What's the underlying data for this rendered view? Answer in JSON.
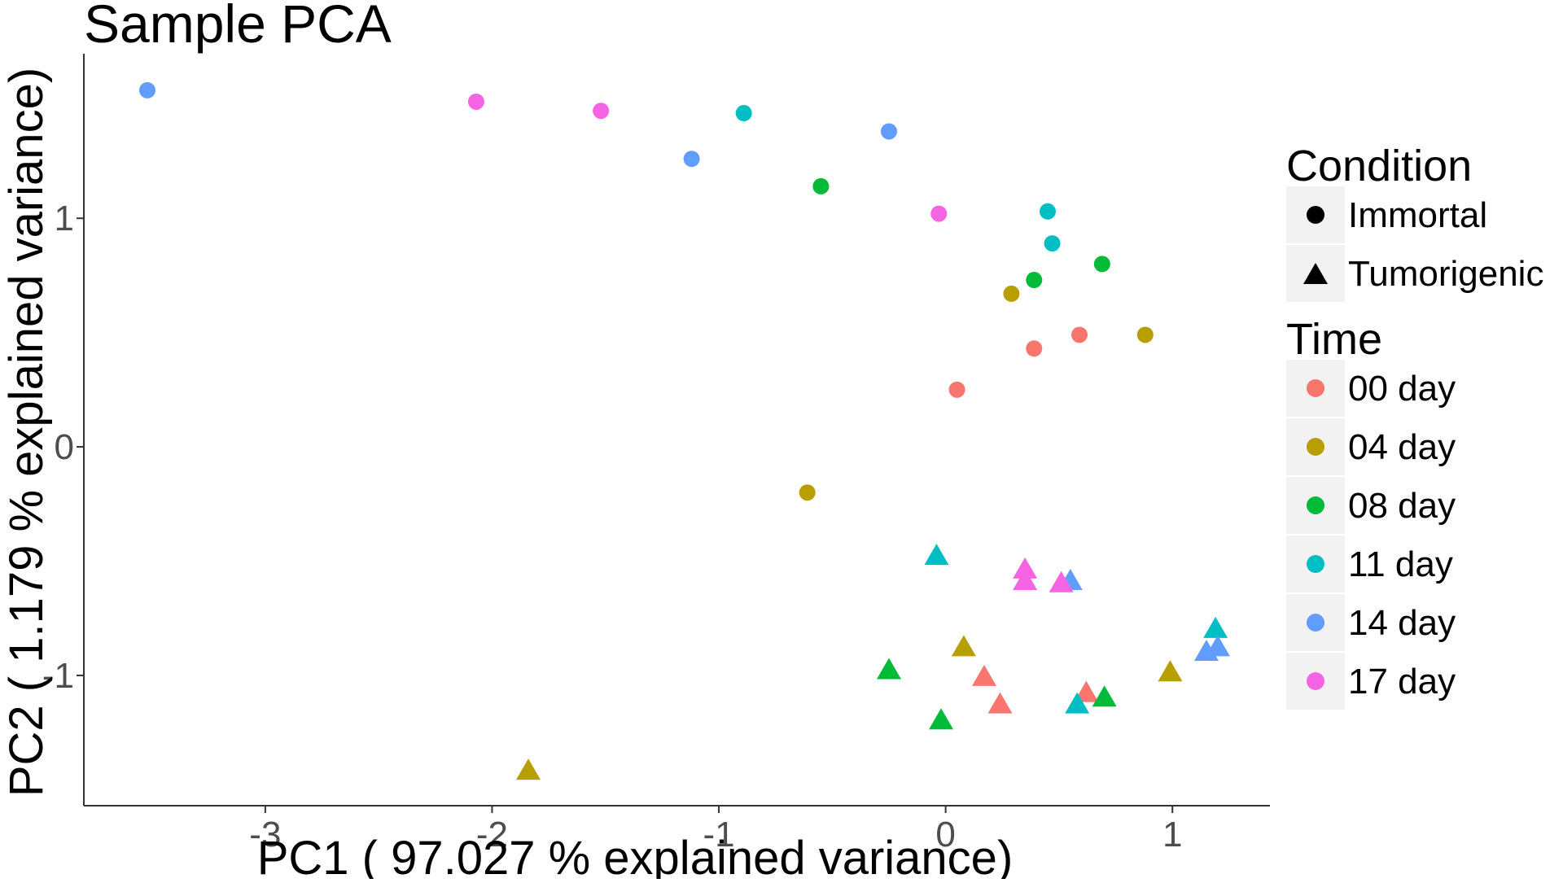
{
  "chart_data": {
    "type": "scatter",
    "title": "Sample PCA",
    "xlabel": "PC1 ( 97.027 % explained variance)",
    "ylabel": "PC2 ( 1.179 % explained variance)",
    "xlim": [
      -3.8,
      1.43
    ],
    "ylim": [
      -1.57,
      1.72
    ],
    "x_ticks": [
      -3,
      -2,
      -1,
      0,
      1
    ],
    "x_tick_labels": [
      "-3",
      "-2",
      "-1",
      "0",
      "1"
    ],
    "y_ticks": [
      -1,
      0,
      1
    ],
    "y_tick_labels": [
      "-1",
      "0",
      "1"
    ],
    "grid": false,
    "legend_placement": "right",
    "shape_legend": {
      "title": "Condition",
      "items": [
        {
          "label": "Immortal",
          "shape": "circle"
        },
        {
          "label": "Tumorigenic",
          "shape": "triangle"
        }
      ]
    },
    "color_legend": {
      "title": "Time",
      "items": [
        {
          "label": "00 day",
          "color": "#F8766D"
        },
        {
          "label": "04 day",
          "color": "#B79F00"
        },
        {
          "label": "08 day",
          "color": "#00BA38"
        },
        {
          "label": "11 day",
          "color": "#00BFC4"
        },
        {
          "label": "14 day",
          "color": "#619CFF"
        },
        {
          "label": "17 day",
          "color": "#F564E3"
        }
      ]
    },
    "series": [
      {
        "name": "Immortal",
        "shape": "circle",
        "points": [
          {
            "x": -3.52,
            "y": 1.56,
            "time": "14 day"
          },
          {
            "x": -2.07,
            "y": 1.51,
            "time": "17 day"
          },
          {
            "x": -1.52,
            "y": 1.47,
            "time": "17 day"
          },
          {
            "x": -0.89,
            "y": 1.46,
            "time": "11 day"
          },
          {
            "x": -0.25,
            "y": 1.38,
            "time": "14 day"
          },
          {
            "x": -1.12,
            "y": 1.26,
            "time": "14 day"
          },
          {
            "x": -0.55,
            "y": 1.14,
            "time": "08 day"
          },
          {
            "x": -0.03,
            "y": 1.02,
            "time": "17 day"
          },
          {
            "x": 0.45,
            "y": 1.03,
            "time": "11 day"
          },
          {
            "x": 0.47,
            "y": 0.89,
            "time": "11 day"
          },
          {
            "x": 0.69,
            "y": 0.8,
            "time": "08 day"
          },
          {
            "x": 0.39,
            "y": 0.73,
            "time": "08 day"
          },
          {
            "x": 0.29,
            "y": 0.67,
            "time": "04 day"
          },
          {
            "x": 0.59,
            "y": 0.49,
            "time": "00 day"
          },
          {
            "x": 0.88,
            "y": 0.49,
            "time": "04 day"
          },
          {
            "x": 0.39,
            "y": 0.43,
            "time": "00 day"
          },
          {
            "x": 0.05,
            "y": 0.25,
            "time": "00 day"
          },
          {
            "x": -0.61,
            "y": -0.2,
            "time": "04 day"
          }
        ]
      },
      {
        "name": "Tumorigenic",
        "shape": "triangle",
        "points": [
          {
            "x": -0.04,
            "y": -0.47,
            "time": "11 day"
          },
          {
            "x": 0.35,
            "y": -0.53,
            "time": "17 day"
          },
          {
            "x": 0.35,
            "y": -0.58,
            "time": "17 day"
          },
          {
            "x": 0.55,
            "y": -0.58,
            "time": "14 day"
          },
          {
            "x": 0.51,
            "y": -0.59,
            "time": "17 day"
          },
          {
            "x": 1.19,
            "y": -0.79,
            "time": "11 day"
          },
          {
            "x": 1.2,
            "y": -0.87,
            "time": "14 day"
          },
          {
            "x": 1.15,
            "y": -0.89,
            "time": "14 day"
          },
          {
            "x": 0.08,
            "y": -0.87,
            "time": "04 day"
          },
          {
            "x": -0.25,
            "y": -0.97,
            "time": "08 day"
          },
          {
            "x": 0.17,
            "y": -1.0,
            "time": "00 day"
          },
          {
            "x": 0.99,
            "y": -0.98,
            "time": "04 day"
          },
          {
            "x": 0.62,
            "y": -1.07,
            "time": "00 day"
          },
          {
            "x": 0.7,
            "y": -1.09,
            "time": "08 day"
          },
          {
            "x": 0.24,
            "y": -1.12,
            "time": "00 day"
          },
          {
            "x": 0.58,
            "y": -1.12,
            "time": "11 day"
          },
          {
            "x": -0.02,
            "y": -1.19,
            "time": "08 day"
          },
          {
            "x": -1.84,
            "y": -1.41,
            "time": "04 day"
          }
        ]
      }
    ]
  }
}
